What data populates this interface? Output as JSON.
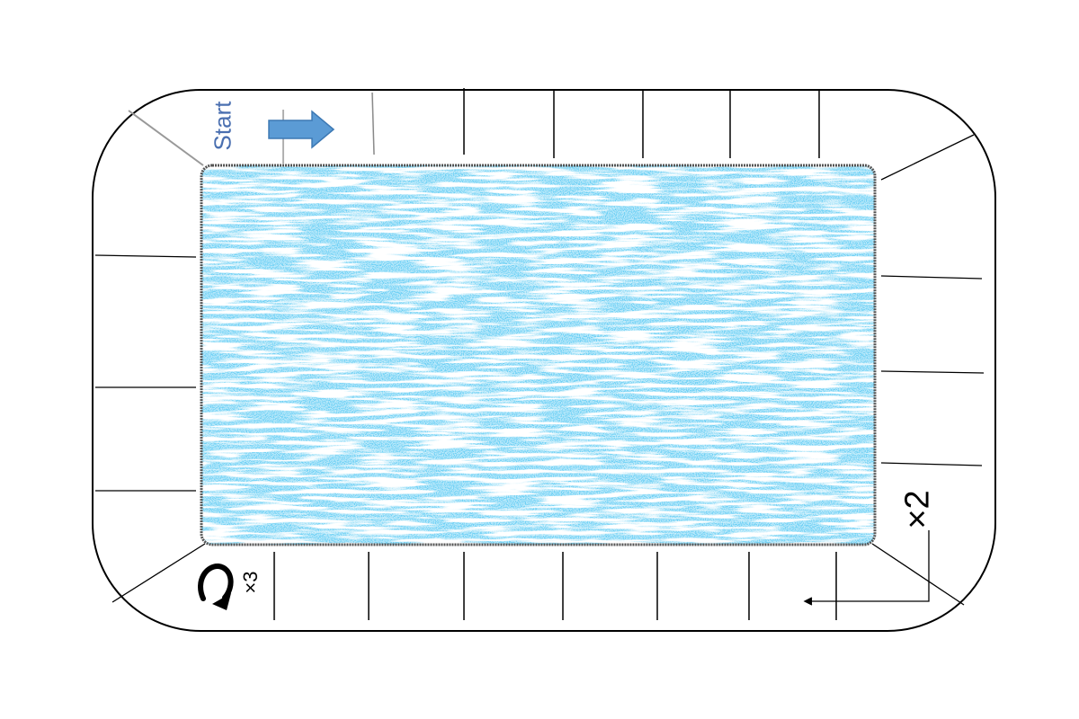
{
  "board": {
    "start_label": "Start",
    "loop_multiplier_label": "×2",
    "turn_multiplier_label": "×3"
  },
  "icons": {
    "start_direction": "right-arrow-icon",
    "turn": "u-turn-arrow-icon",
    "loop_return": "return-arrow-icon"
  },
  "colors": {
    "center_fill": "#29a3e8",
    "start_arrow": "#5b9bd5",
    "start_text": "#4a6fb0",
    "track_outline": "#000000"
  }
}
